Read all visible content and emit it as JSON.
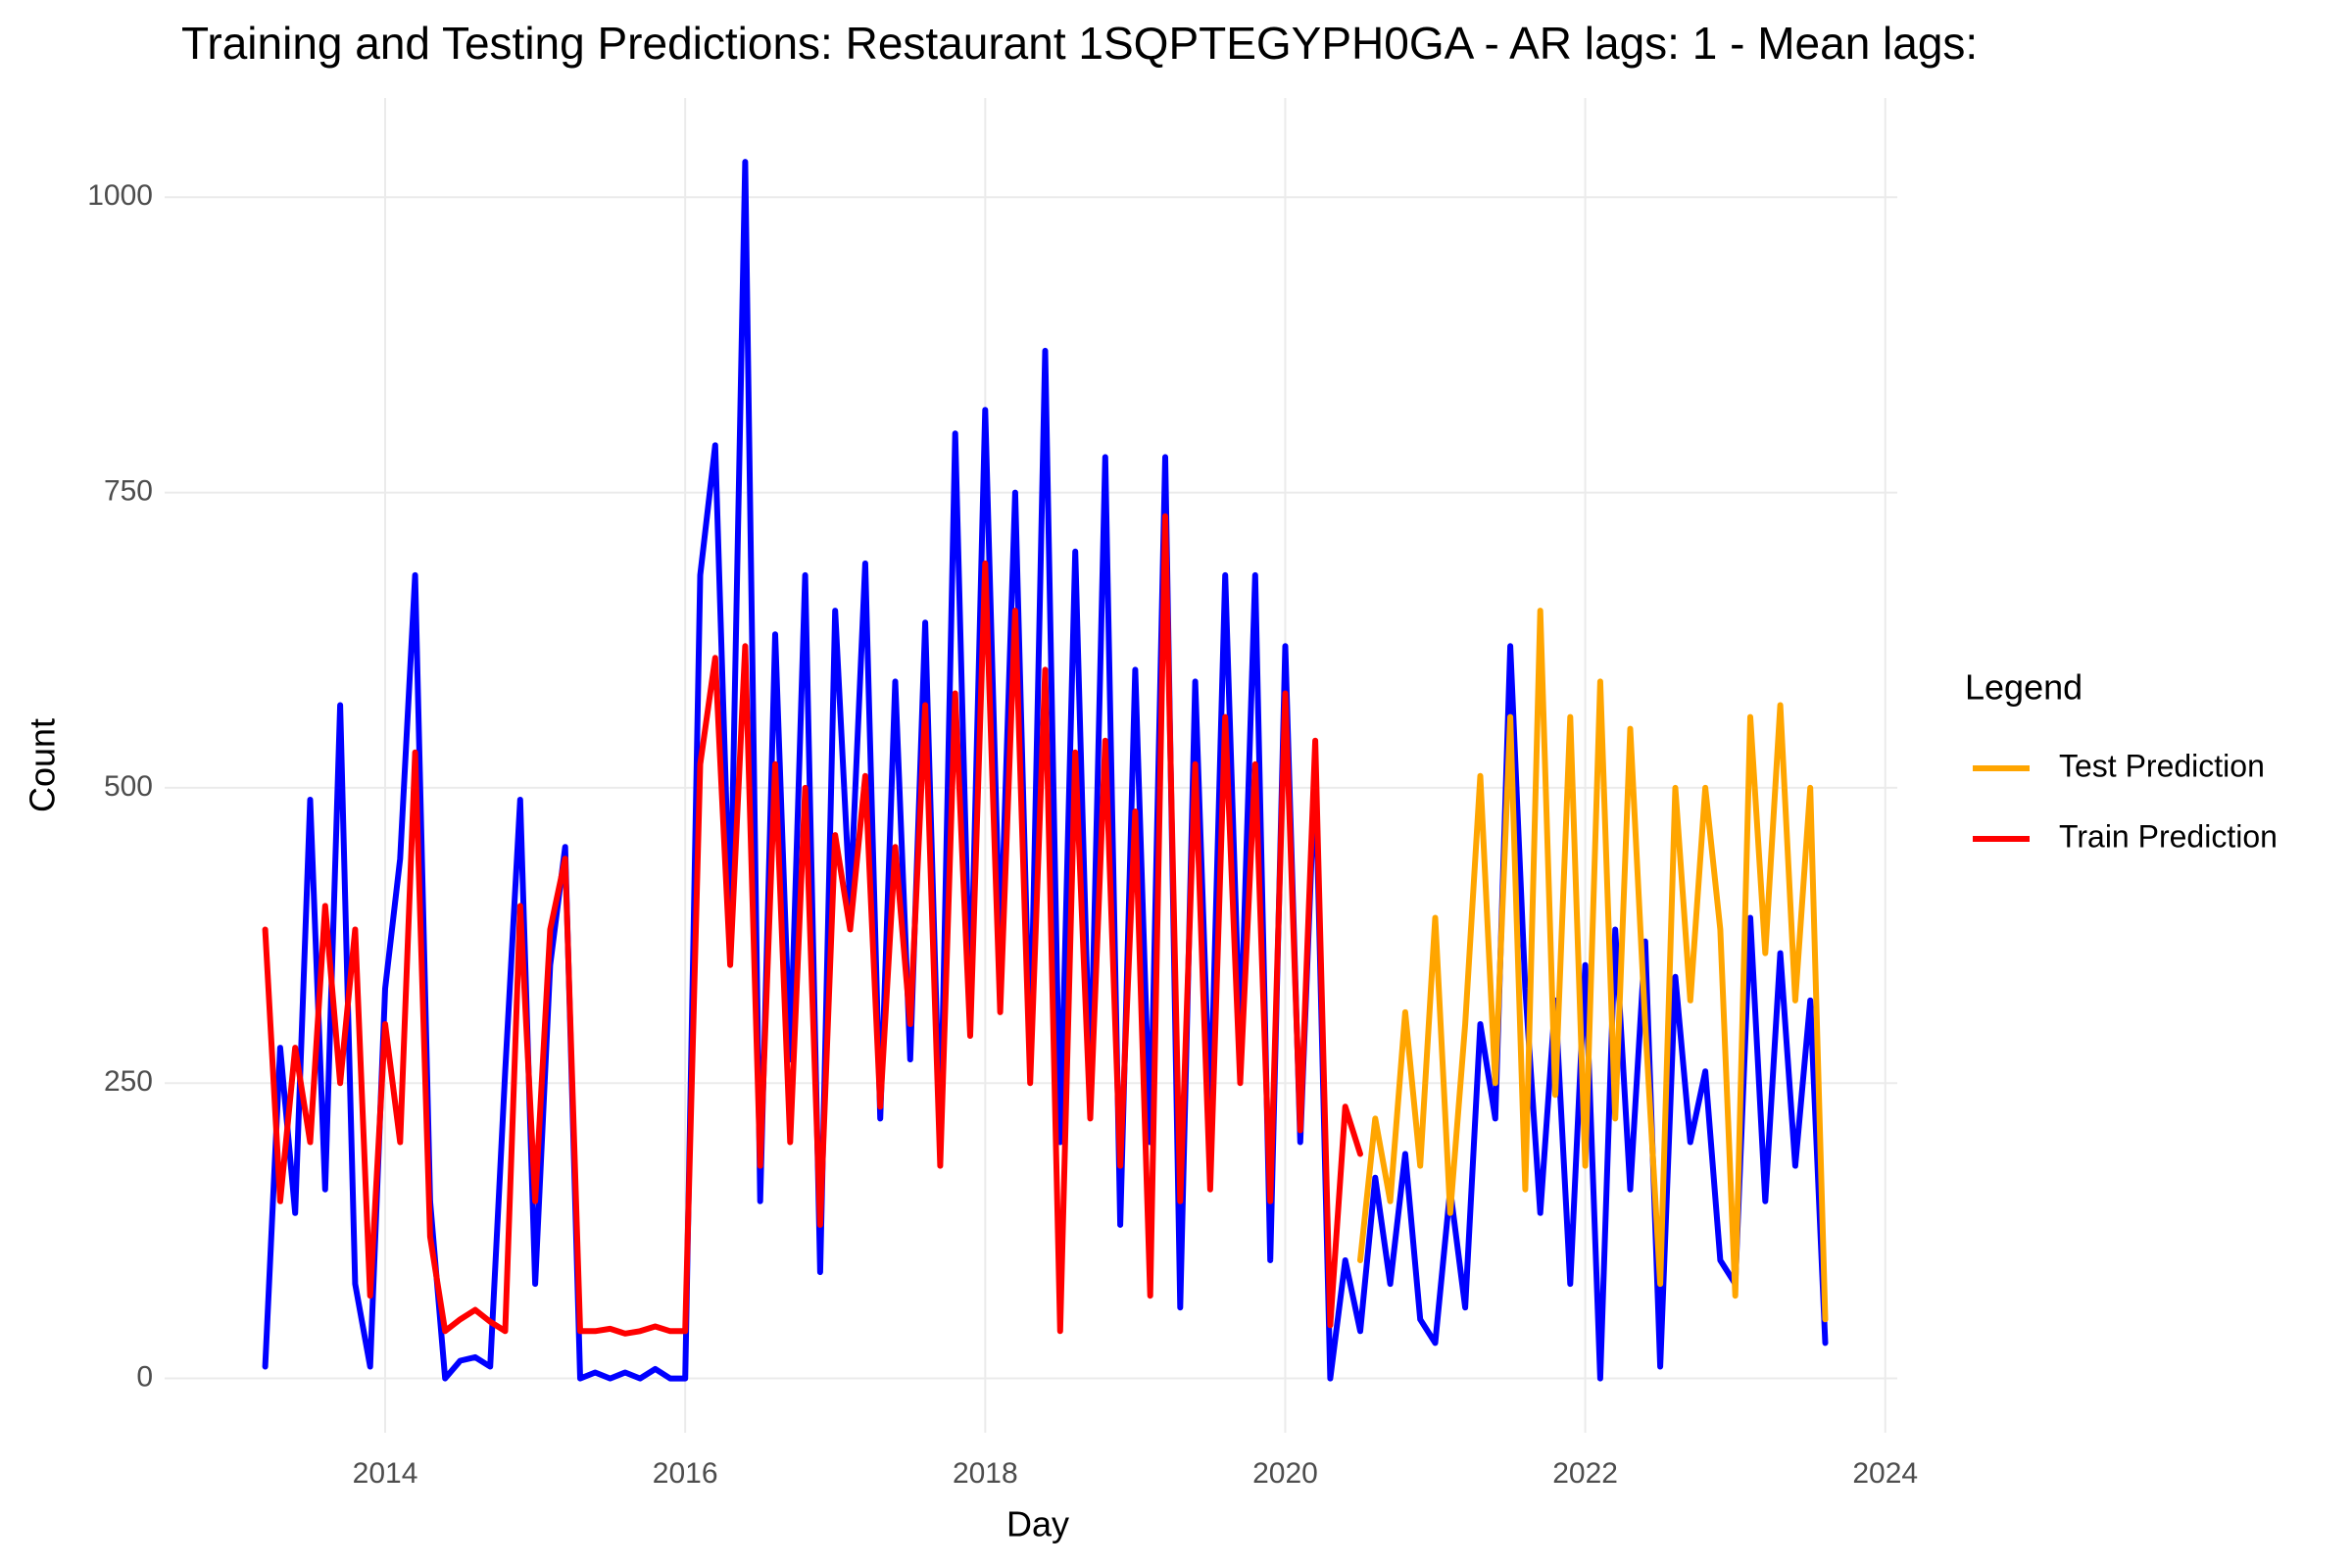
{
  "chart_data": {
    "type": "line",
    "title": "Training and Testing Predictions: Restaurant 1SQPTEGYPH0GA - AR lags: 1 - Mean lags:",
    "x_label": "Day",
    "y_label": "Count",
    "legend_title": "Legend",
    "legend_position": "right",
    "grid": true,
    "xlim": [
      2012.53,
      2024.08
    ],
    "xticks": [
      2014,
      2016,
      2018,
      2020,
      2022,
      2024
    ],
    "ylim": [
      -46,
      1084
    ],
    "yticks": [
      0,
      250,
      500,
      750,
      1000
    ],
    "series": [
      {
        "color": "#0000ff",
        "x": [
          2013.2,
          2013.3,
          2013.4,
          2013.5,
          2013.6,
          2013.7,
          2013.8,
          2013.9,
          2014.0,
          2014.1,
          2014.2,
          2014.3,
          2014.4,
          2014.5,
          2014.6,
          2014.7,
          2014.8,
          2014.9,
          2015.0,
          2015.1,
          2015.2,
          2015.3,
          2015.4,
          2015.5,
          2015.6,
          2015.7,
          2015.8,
          2015.9,
          2016.0,
          2016.1,
          2016.2,
          2016.3,
          2016.4,
          2016.5,
          2016.6,
          2016.7,
          2016.8,
          2016.9,
          2017.0,
          2017.1,
          2017.2,
          2017.3,
          2017.4,
          2017.5,
          2017.6,
          2017.7,
          2017.8,
          2017.9,
          2018.0,
          2018.1,
          2018.2,
          2018.3,
          2018.4,
          2018.5,
          2018.6,
          2018.7,
          2018.8,
          2018.9,
          2019.0,
          2019.1,
          2019.2,
          2019.3,
          2019.4,
          2019.5,
          2019.6,
          2019.7,
          2019.8,
          2019.9,
          2020.0,
          2020.1,
          2020.2,
          2020.3,
          2020.4,
          2020.5,
          2020.6,
          2020.7,
          2020.8,
          2020.9,
          2021.0,
          2021.1,
          2021.2,
          2021.3,
          2021.4,
          2021.5,
          2021.6,
          2021.7,
          2021.8,
          2021.9,
          2022.0,
          2022.1,
          2022.2,
          2022.3,
          2022.4,
          2022.5,
          2022.6,
          2022.7,
          2022.8,
          2022.9,
          2023.0,
          2023.1,
          2023.2,
          2023.3,
          2023.4,
          2023.5,
          2023.6
        ],
        "values": [
          10,
          280,
          140,
          490,
          160,
          570,
          80,
          10,
          330,
          440,
          680,
          150,
          0,
          15,
          18,
          10,
          260,
          490,
          80,
          350,
          450,
          0,
          5,
          0,
          5,
          0,
          8,
          0,
          0,
          680,
          790,
          380,
          1030,
          150,
          630,
          270,
          680,
          90,
          650,
          400,
          690,
          220,
          590,
          270,
          640,
          200,
          800,
          310,
          820,
          360,
          750,
          270,
          870,
          200,
          700,
          240,
          780,
          130,
          600,
          200,
          780,
          60,
          590,
          220,
          680,
          280,
          680,
          100,
          620,
          200,
          520,
          0,
          100,
          40,
          170,
          80,
          190,
          50,
          30,
          160,
          60,
          300,
          220,
          620,
          330,
          140,
          320,
          80,
          350,
          0,
          380,
          160,
          370,
          10,
          340,
          200,
          260,
          100,
          80,
          390,
          150,
          360,
          180,
          320,
          30
        ]
      },
      {
        "name": "Test Prediction",
        "color": "#ffa500",
        "x": [
          2020.5,
          2020.6,
          2020.7,
          2020.8,
          2020.9,
          2021.0,
          2021.1,
          2021.2,
          2021.3,
          2021.4,
          2021.5,
          2021.6,
          2021.7,
          2021.8,
          2021.9,
          2022.0,
          2022.1,
          2022.2,
          2022.3,
          2022.4,
          2022.5,
          2022.6,
          2022.7,
          2022.8,
          2022.9,
          2023.0,
          2023.1,
          2023.2,
          2023.3,
          2023.4,
          2023.5,
          2023.6
        ],
        "values": [
          100,
          220,
          150,
          310,
          180,
          390,
          140,
          300,
          510,
          250,
          560,
          160,
          650,
          240,
          560,
          180,
          590,
          220,
          550,
          300,
          80,
          500,
          320,
          500,
          380,
          70,
          560,
          360,
          570,
          320,
          500,
          50
        ]
      },
      {
        "name": "Train Prediction",
        "color": "#ff0000",
        "x": [
          2013.2,
          2013.3,
          2013.4,
          2013.5,
          2013.6,
          2013.7,
          2013.8,
          2013.9,
          2014.0,
          2014.1,
          2014.2,
          2014.3,
          2014.4,
          2014.5,
          2014.6,
          2014.7,
          2014.8,
          2014.9,
          2015.0,
          2015.1,
          2015.2,
          2015.3,
          2015.4,
          2015.5,
          2015.6,
          2015.7,
          2015.8,
          2015.9,
          2016.0,
          2016.1,
          2016.2,
          2016.3,
          2016.4,
          2016.5,
          2016.6,
          2016.7,
          2016.8,
          2016.9,
          2017.0,
          2017.1,
          2017.2,
          2017.3,
          2017.4,
          2017.5,
          2017.6,
          2017.7,
          2017.8,
          2017.9,
          2018.0,
          2018.1,
          2018.2,
          2018.3,
          2018.4,
          2018.5,
          2018.6,
          2018.7,
          2018.8,
          2018.9,
          2019.0,
          2019.1,
          2019.2,
          2019.3,
          2019.4,
          2019.5,
          2019.6,
          2019.7,
          2019.8,
          2019.9,
          2020.0,
          2020.1,
          2020.2,
          2020.3,
          2020.4,
          2020.5
        ],
        "values": [
          380,
          150,
          280,
          200,
          400,
          250,
          380,
          70,
          300,
          200,
          530,
          120,
          40,
          50,
          58,
          48,
          40,
          400,
          150,
          380,
          440,
          40,
          40,
          42,
          38,
          40,
          44,
          40,
          40,
          520,
          610,
          350,
          620,
          180,
          520,
          200,
          500,
          130,
          460,
          380,
          510,
          230,
          450,
          300,
          570,
          180,
          580,
          290,
          690,
          310,
          650,
          250,
          600,
          40,
          530,
          220,
          540,
          180,
          480,
          70,
          730,
          150,
          520,
          160,
          560,
          250,
          520,
          150,
          580,
          210,
          540,
          45,
          230,
          190
        ]
      }
    ]
  }
}
